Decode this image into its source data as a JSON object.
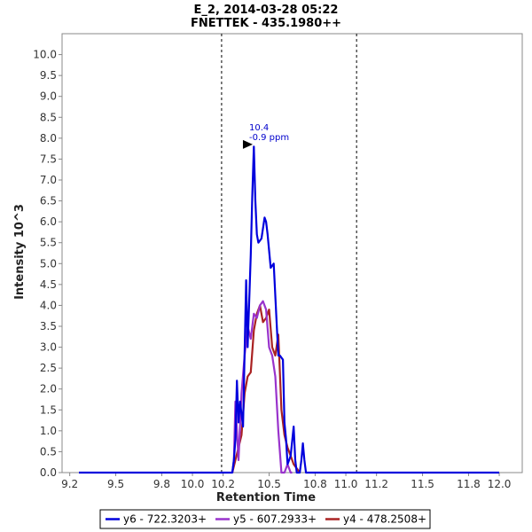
{
  "chart_data": {
    "type": "line",
    "title": "E_2, 2014-03-28 05:22",
    "subtitle": "FNETTEK - 435.1980++",
    "xlabel": "Retention Time",
    "ylabel": "Intensity 10^3",
    "xlim": [
      9.15,
      12.15
    ],
    "ylim": [
      0,
      10.5
    ],
    "x_ticks": [
      9.2,
      9.5,
      9.8,
      10.0,
      10.2,
      10.5,
      10.8,
      11.0,
      11.2,
      11.5,
      11.8,
      12.0
    ],
    "x_tick_labels": [
      "9.2",
      "9.5",
      "9.8",
      "10.0",
      "10.2",
      "10.5",
      "10.8",
      "11.0",
      "11.2",
      "11.5",
      "11.8",
      "12.0"
    ],
    "y_ticks": [
      0.0,
      0.5,
      1.0,
      1.5,
      2.0,
      2.5,
      3.0,
      3.5,
      4.0,
      4.5,
      5.0,
      5.5,
      6.0,
      6.5,
      7.0,
      7.5,
      8.0,
      8.5,
      9.0,
      9.5,
      10.0
    ],
    "y_tick_labels": [
      "0.0",
      "0.5",
      "1.0",
      "1.5",
      "2.0",
      "2.5",
      "3.0",
      "3.5",
      "4.0",
      "4.5",
      "5.0",
      "5.5",
      "6.0",
      "6.5",
      "7.0",
      "7.5",
      "8.0",
      "8.5",
      "9.0",
      "9.5",
      "10.0"
    ],
    "grid": false,
    "legend_position": "bottom",
    "vertical_markers": [
      10.19,
      11.07
    ],
    "annotation": {
      "x": 10.41,
      "y": 7.85,
      "line1": "10.4",
      "line2": "-0.9 ppm",
      "color": "#0000cc"
    },
    "series": [
      {
        "name": "y6 - 722.3203+",
        "color": "#0000dd",
        "x": [
          9.26,
          10.26,
          10.27,
          10.28,
          10.29,
          10.3,
          10.31,
          10.33,
          10.35,
          10.36,
          10.38,
          10.39,
          10.4,
          10.41,
          10.42,
          10.43,
          10.45,
          10.47,
          10.48,
          10.49,
          10.51,
          10.53,
          10.55,
          10.56,
          10.57,
          10.59,
          10.6,
          10.61,
          10.62,
          10.64,
          10.66,
          10.67,
          10.68,
          10.69,
          10.7,
          10.71,
          10.72,
          10.73,
          10.74,
          10.75,
          10.76,
          12.0
        ],
        "y": [
          0.0,
          0.0,
          0.3,
          0.8,
          2.2,
          1.2,
          1.7,
          1.1,
          4.6,
          3.0,
          5.2,
          6.6,
          7.8,
          6.5,
          5.7,
          5.5,
          5.6,
          6.1,
          6.0,
          5.7,
          4.9,
          5.0,
          3.5,
          2.8,
          2.8,
          2.7,
          1.2,
          0.8,
          0.2,
          0.4,
          1.1,
          0.3,
          0.0,
          0.0,
          0.0,
          0.3,
          0.7,
          0.3,
          0.0,
          0.0,
          0.0,
          0.0
        ]
      },
      {
        "name": "y5 - 607.2933+",
        "color": "#9933cc",
        "x": [
          10.26,
          10.27,
          10.28,
          10.3,
          10.32,
          10.34,
          10.36,
          10.38,
          10.4,
          10.42,
          10.44,
          10.46,
          10.48,
          10.5,
          10.52,
          10.54,
          10.56,
          10.58,
          10.6,
          10.62,
          10.64,
          10.65
        ],
        "y": [
          0.0,
          0.3,
          1.7,
          0.3,
          1.9,
          2.8,
          3.5,
          3.2,
          3.8,
          3.7,
          4.0,
          4.1,
          3.9,
          3.0,
          2.8,
          2.3,
          1.0,
          0.0,
          0.0,
          0.2,
          0.0,
          0.0
        ]
      },
      {
        "name": "y4 - 478.2508+",
        "color": "#aa2222",
        "x": [
          10.26,
          10.28,
          10.3,
          10.32,
          10.34,
          10.36,
          10.38,
          10.4,
          10.42,
          10.44,
          10.46,
          10.48,
          10.5,
          10.52,
          10.54,
          10.56,
          10.58,
          10.6,
          10.62,
          10.64,
          10.66,
          10.68,
          10.7
        ],
        "y": [
          0.0,
          0.3,
          0.6,
          0.9,
          1.9,
          2.3,
          2.4,
          3.4,
          3.8,
          4.0,
          3.6,
          3.7,
          3.9,
          3.0,
          2.8,
          3.3,
          1.5,
          0.9,
          0.6,
          0.4,
          0.2,
          0.1,
          0.0
        ]
      }
    ]
  }
}
